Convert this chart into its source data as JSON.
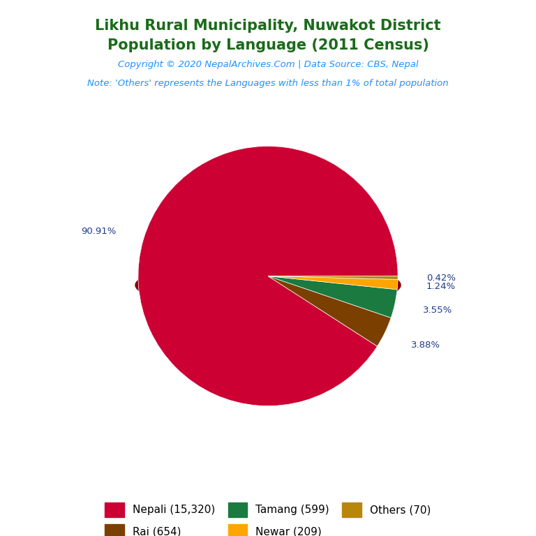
{
  "title_line1": "Likhu Rural Municipality, Nuwakot District",
  "title_line2": "Population by Language (2011 Census)",
  "copyright_text": "Copyright © 2020 NepalArchives.Com | Data Source: CBS, Nepal",
  "note_text": "Note: 'Others' represents the Languages with less than 1% of total population",
  "labels": [
    "Nepali (15,320)",
    "Rai (654)",
    "Tamang (599)",
    "Newar (209)",
    "Others (70)"
  ],
  "values": [
    15320,
    654,
    599,
    209,
    70
  ],
  "percentages": [
    "90.91%",
    "3.88%",
    "3.55%",
    "1.24%",
    "0.42%"
  ],
  "pct_indices": [
    0,
    1,
    2,
    3,
    4
  ],
  "colors": [
    "#CC0033",
    "#7B3F00",
    "#1A7A40",
    "#FFA500",
    "#B8860B"
  ],
  "explode": [
    0,
    0,
    0,
    0,
    0
  ],
  "title_color": "#1A6B1A",
  "copyright_color": "#1E90FF",
  "note_color": "#1E90FF",
  "pct_label_color": "#1E3A8A",
  "background_color": "#FFFFFF",
  "shadow_color": "#8B0000",
  "startangle": 0,
  "legend_labels_row1": [
    "Nepali (15,320)",
    "Rai (654)",
    "Tamang (599)"
  ],
  "legend_labels_row2": [
    "Newar (209)",
    "Others (70)"
  ],
  "legend_colors_row1": [
    "#CC0033",
    "#7B3F00",
    "#1A7A40"
  ],
  "legend_colors_row2": [
    "#FFA500",
    "#B8860B"
  ]
}
